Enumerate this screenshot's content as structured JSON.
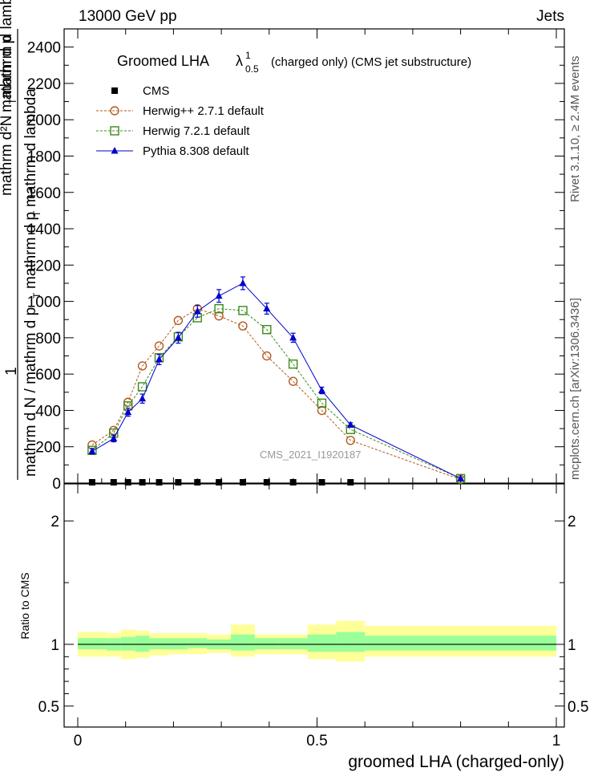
{
  "header": {
    "left": "13000 GeV pp",
    "right": "Jets"
  },
  "side": {
    "rivet": "Rivet 3.1.10, ≥ 2.4M events",
    "mcplots": "mcplots.cern.ch [arXiv:1306.3436]"
  },
  "plot_title": {
    "main": "Groomed LHA",
    "sym": "λ",
    "sup": "1",
    "sub": "0.5",
    "rest": "(charged only) (CMS jet substructure)"
  },
  "analysis_id": "CMS_2021_I1920187",
  "chart_data": [
    {
      "type": "line",
      "ylabel_lines": [
        "1",
        "mathrm d N / mathrm d p",
        "T",
        "mathrm d p",
        "T",
        "mathrm d lambda",
        "mathrm d²N",
        "mathrm d p",
        "T",
        "mathrm d lambda"
      ],
      "xlim": [
        0,
        1
      ],
      "ylim": [
        0,
        2500
      ],
      "yticks": [
        0,
        200,
        400,
        600,
        800,
        1000,
        1200,
        1400,
        1600,
        1800,
        2000,
        2200,
        2400
      ],
      "legend_position": "top-left",
      "series": [
        {
          "name": "CMS",
          "color": "#000000",
          "marker": "square-filled",
          "x": [
            0.03,
            0.075,
            0.105,
            0.135,
            0.17,
            0.21,
            0.25,
            0.295,
            0.345,
            0.395,
            0.45,
            0.51,
            0.57
          ],
          "values": [
            0,
            0,
            0,
            0,
            0,
            0,
            0,
            0,
            0,
            0,
            0,
            0,
            0
          ]
        },
        {
          "name": "Herwig++ 2.7.1 default",
          "color": "#b35a1f",
          "marker": "circle-open",
          "line": "dashed",
          "x": [
            0.03,
            0.075,
            0.105,
            0.135,
            0.17,
            0.21,
            0.25,
            0.295,
            0.345,
            0.395,
            0.45,
            0.51,
            0.57,
            0.8
          ],
          "values": [
            210,
            290,
            445,
            645,
            755,
            895,
            960,
            920,
            865,
            700,
            560,
            400,
            235,
            20
          ]
        },
        {
          "name": "Herwig 7.2.1 default",
          "color": "#3a8a1a",
          "marker": "square-open",
          "line": "dashed",
          "x": [
            0.03,
            0.075,
            0.105,
            0.135,
            0.17,
            0.21,
            0.25,
            0.295,
            0.345,
            0.395,
            0.45,
            0.51,
            0.57,
            0.8
          ],
          "values": [
            180,
            275,
            425,
            530,
            690,
            805,
            910,
            960,
            950,
            845,
            655,
            440,
            295,
            25
          ]
        },
        {
          "name": "Pythia 8.308 default",
          "color": "#0000cc",
          "marker": "triangle-filled",
          "line": "solid",
          "x": [
            0.03,
            0.075,
            0.105,
            0.135,
            0.17,
            0.21,
            0.25,
            0.295,
            0.345,
            0.395,
            0.45,
            0.51,
            0.57,
            0.8
          ],
          "values": [
            175,
            245,
            390,
            465,
            680,
            800,
            945,
            1030,
            1100,
            960,
            800,
            510,
            320,
            25
          ],
          "errors": [
            15,
            18,
            22,
            25,
            28,
            30,
            32,
            35,
            35,
            30,
            25,
            18,
            12,
            4
          ]
        }
      ]
    },
    {
      "type": "area",
      "ylabel": "Ratio to CMS",
      "xlabel": "groomed LHA (charged-only)",
      "xlim": [
        0,
        1
      ],
      "ylim": [
        0.33,
        2.3
      ],
      "yticks": [
        0.5,
        1,
        2
      ],
      "xticks": [
        0,
        0.5,
        1
      ],
      "xtick_labels": [
        "0",
        "0.5",
        "1"
      ],
      "bands": {
        "edges": [
          0,
          0.06,
          0.09,
          0.12,
          0.15,
          0.19,
          0.23,
          0.27,
          0.32,
          0.37,
          0.42,
          0.48,
          0.54,
          0.6,
          1.0
        ],
        "yellow_low": [
          0.9,
          0.9,
          0.88,
          0.89,
          0.91,
          0.92,
          0.92,
          0.93,
          0.9,
          0.92,
          0.92,
          0.88,
          0.86,
          0.9
        ],
        "yellow_high": [
          1.1,
          1.09,
          1.12,
          1.11,
          1.09,
          1.09,
          1.09,
          1.08,
          1.16,
          1.08,
          1.08,
          1.16,
          1.19,
          1.15
        ],
        "green_low": [
          0.96,
          0.95,
          0.95,
          0.94,
          0.96,
          0.96,
          0.97,
          0.96,
          0.95,
          0.96,
          0.96,
          0.94,
          0.94,
          0.95
        ],
        "green_high": [
          1.05,
          1.05,
          1.06,
          1.07,
          1.05,
          1.05,
          1.05,
          1.04,
          1.08,
          1.05,
          1.05,
          1.08,
          1.1,
          1.07
        ],
        "yellow_color": "#ffff99",
        "green_color": "#99ff99"
      }
    }
  ]
}
